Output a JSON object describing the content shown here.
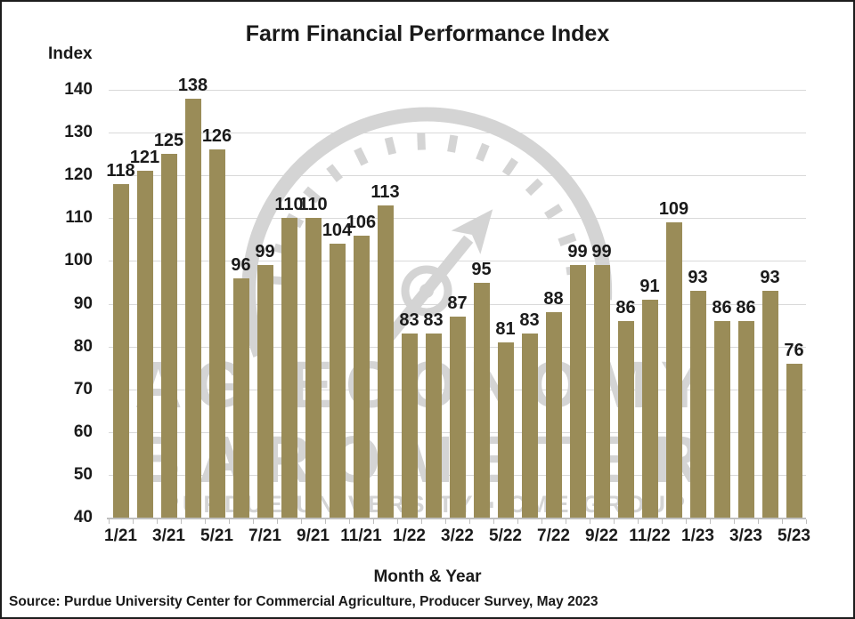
{
  "frame": {
    "title": "Farm Financial Performance Index",
    "y_axis_title": "Index",
    "x_axis_title": "Month & Year",
    "source": "Source: Purdue University Center for Commercial Agriculture, Producer Survey, May 2023"
  },
  "watermark": {
    "name": "ag-economy-barometer-logo",
    "line1": "AG ECONOMY",
    "line2": "BAROMETER",
    "line3": "PURDUE UNIVERSITY ▪ CME GROUP",
    "color": "#d4d4d4"
  },
  "chart_data": {
    "type": "bar",
    "title": "Farm Financial Performance Index",
    "xlabel": "Month & Year",
    "ylabel": "Index",
    "categories": [
      "1/21",
      "2/21",
      "3/21",
      "4/21",
      "5/21",
      "6/21",
      "7/21",
      "8/21",
      "9/21",
      "10/21",
      "11/21",
      "12/21",
      "1/22",
      "2/22",
      "3/22",
      "4/22",
      "5/22",
      "6/22",
      "7/22",
      "8/22",
      "9/22",
      "10/22",
      "11/22",
      "12/22",
      "1/23",
      "2/23",
      "3/23",
      "4/23",
      "5/23"
    ],
    "values": [
      118,
      121,
      125,
      138,
      126,
      96,
      99,
      110,
      110,
      104,
      106,
      113,
      83,
      83,
      87,
      95,
      81,
      83,
      88,
      99,
      99,
      86,
      91,
      109,
      93,
      86,
      86,
      93,
      76
    ],
    "x_tick_label_step": 2,
    "y_ticks": [
      40,
      50,
      60,
      70,
      80,
      90,
      100,
      110,
      120,
      130,
      140
    ],
    "ylim": [
      40,
      140
    ],
    "grid": true,
    "data_labels": true,
    "legend": "none",
    "colors": {
      "bar": "#9a8c58",
      "grid": "#d9d9d9",
      "axis": "#bfbfbf",
      "text": "#1a1a1a"
    }
  }
}
